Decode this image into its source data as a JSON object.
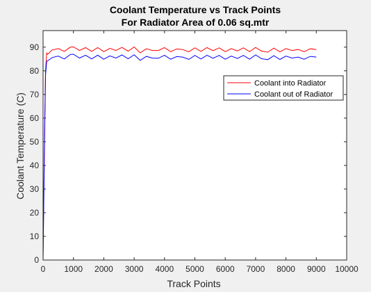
{
  "chart_data": {
    "type": "line",
    "title": "Coolant Temperature vs Track Points",
    "subtitle": "For Radiator Area of 0.06 sq.mtr",
    "xlabel": "Track Points",
    "ylabel": "Coolant Temperature (C)",
    "xlim": [
      0,
      10000
    ],
    "ylim": [
      0,
      97
    ],
    "xticks": [
      0,
      1000,
      2000,
      3000,
      4000,
      5000,
      6000,
      7000,
      8000,
      9000,
      10000
    ],
    "yticks": [
      0,
      10,
      20,
      30,
      40,
      50,
      60,
      70,
      80,
      90
    ],
    "grid": false,
    "legend_position": "top-right",
    "series": [
      {
        "name": "Coolant into Radiator",
        "color": "#ff0000",
        "x": [
          0,
          40,
          80,
          120,
          150,
          300,
          500,
          700,
          900,
          1000,
          1200,
          1400,
          1600,
          1800,
          2000,
          2200,
          2400,
          2600,
          2800,
          3000,
          3200,
          3400,
          3600,
          3800,
          4000,
          4200,
          4400,
          4600,
          4800,
          5000,
          5200,
          5400,
          5600,
          5800,
          6000,
          6200,
          6400,
          6600,
          6800,
          7000,
          7200,
          7400,
          7600,
          7800,
          8000,
          8200,
          8400,
          8600,
          8800,
          9000
        ],
        "y": [
          0,
          45,
          80,
          87.5,
          87.0,
          88.8,
          89.4,
          88.2,
          90.0,
          90.1,
          88.6,
          89.8,
          88.2,
          89.8,
          88.1,
          89.5,
          88.6,
          89.9,
          88.3,
          90.1,
          87.6,
          89.3,
          88.6,
          88.6,
          89.8,
          88.1,
          89.2,
          89.0,
          88.0,
          89.7,
          88.2,
          89.8,
          88.5,
          89.7,
          88.1,
          89.4,
          88.4,
          89.7,
          88.1,
          89.9,
          88.3,
          87.9,
          89.6,
          88.0,
          89.4,
          88.6,
          89.0,
          88.1,
          89.3,
          89.0
        ]
      },
      {
        "name": "Coolant out of Radiator",
        "color": "#0000ff",
        "x": [
          0,
          40,
          80,
          120,
          150,
          300,
          500,
          700,
          900,
          1000,
          1200,
          1400,
          1600,
          1800,
          2000,
          2200,
          2400,
          2600,
          2800,
          3000,
          3200,
          3400,
          3600,
          3800,
          4000,
          4200,
          4400,
          4600,
          4800,
          5000,
          5200,
          5400,
          5600,
          5800,
          6000,
          6200,
          6400,
          6600,
          6800,
          7000,
          7200,
          7400,
          7600,
          7800,
          8000,
          8200,
          8400,
          8600,
          8800,
          9000
        ],
        "y": [
          0,
          40,
          78,
          84.0,
          84.2,
          85.6,
          86.2,
          85.0,
          86.9,
          87.0,
          85.4,
          86.6,
          85.0,
          86.6,
          84.9,
          86.3,
          85.4,
          86.7,
          85.1,
          86.8,
          84.4,
          86.1,
          85.4,
          85.3,
          86.6,
          84.9,
          86.0,
          85.8,
          84.8,
          86.5,
          85.0,
          86.6,
          85.3,
          86.5,
          84.9,
          86.2,
          85.2,
          86.5,
          84.9,
          86.7,
          85.1,
          84.7,
          86.4,
          84.8,
          86.2,
          85.4,
          85.8,
          84.9,
          86.1,
          85.8
        ]
      }
    ]
  }
}
